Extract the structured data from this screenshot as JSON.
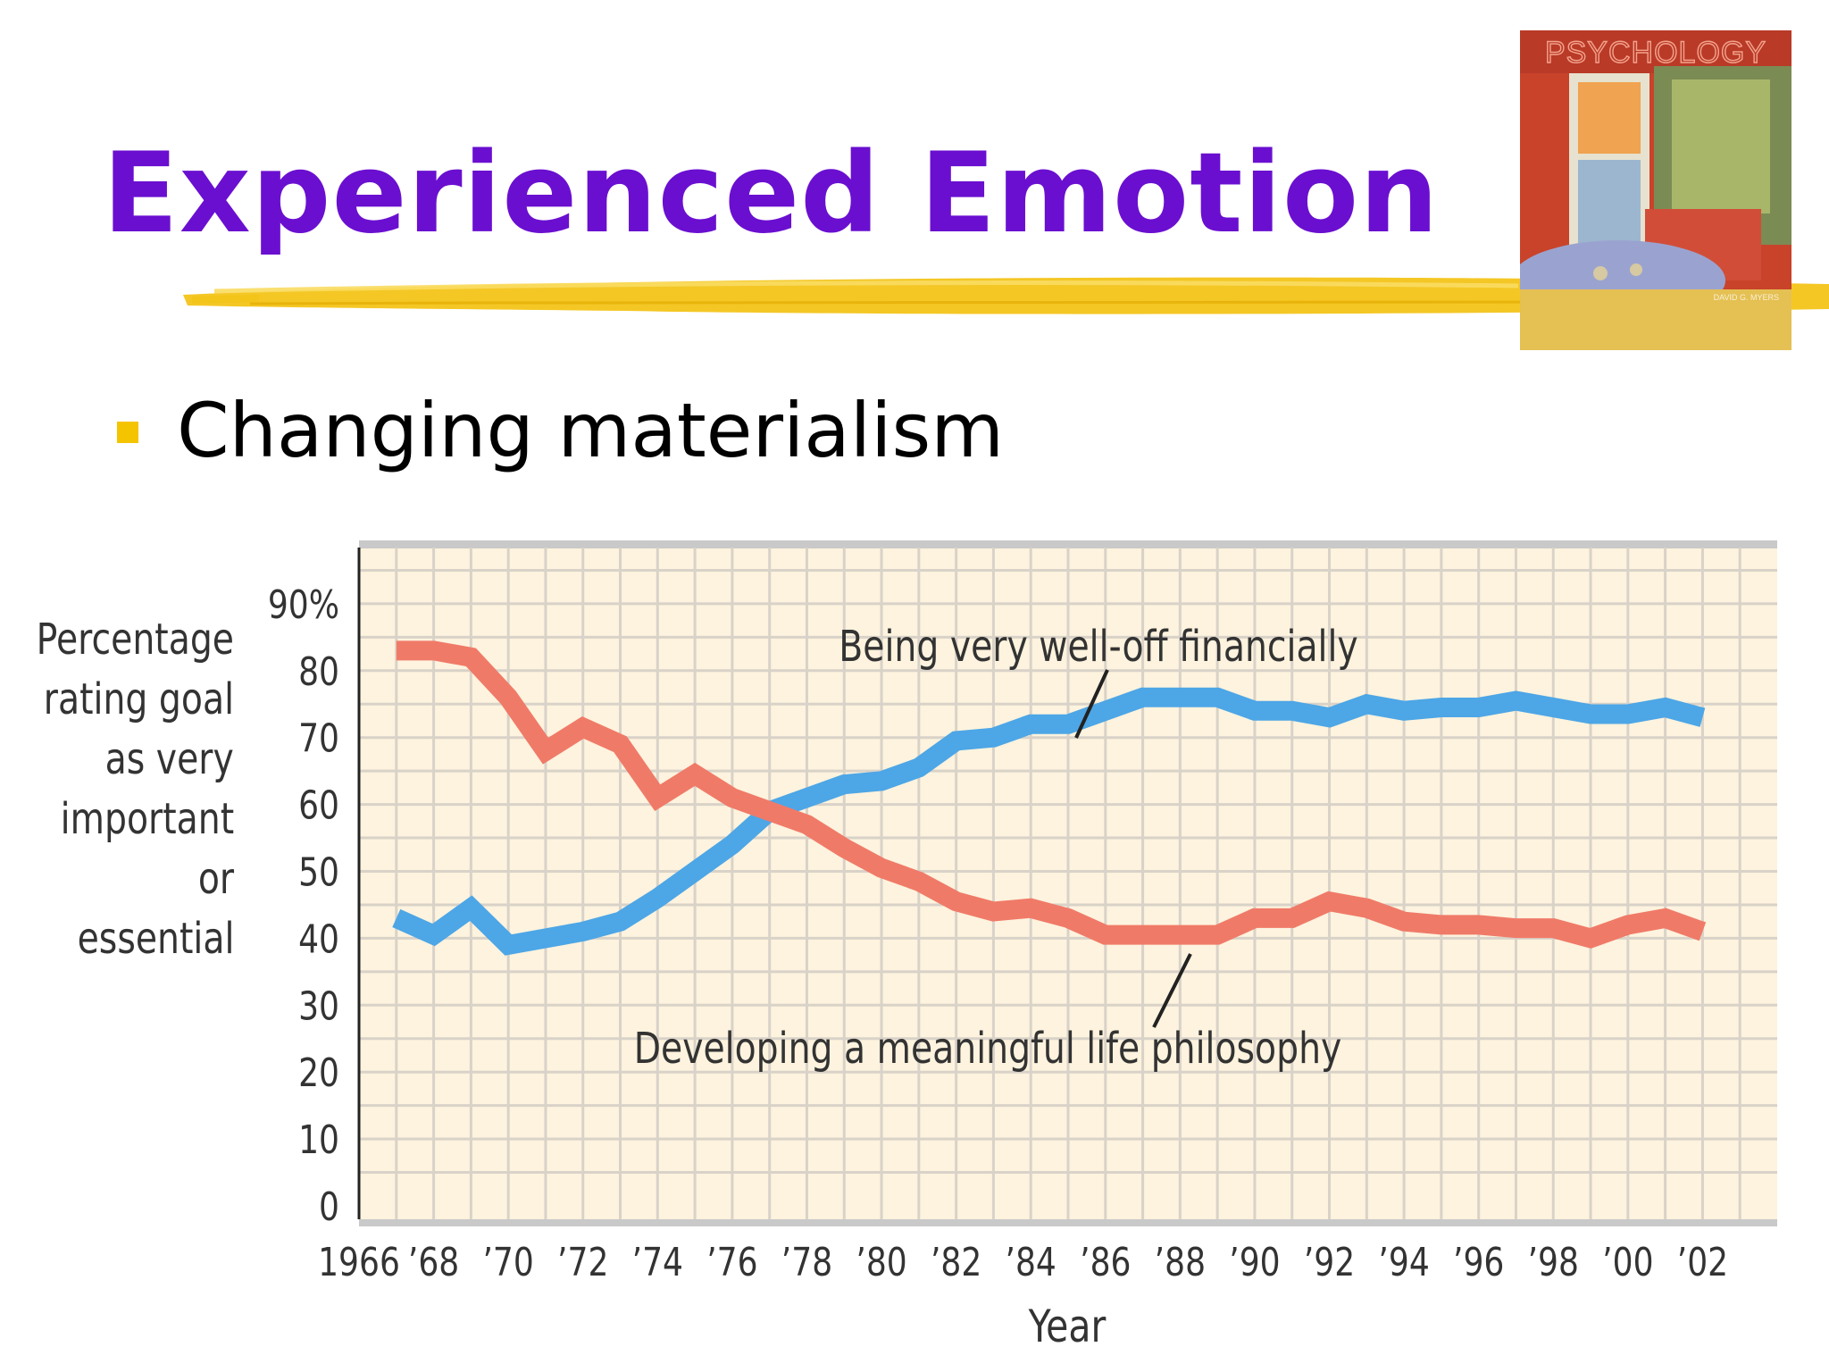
{
  "slide": {
    "title": "Experienced Emotion",
    "bullet": "Changing materialism",
    "book_cover_title": "PSYCHOLOGY",
    "book_cover_author": "DAVID G. MYERS"
  },
  "colors": {
    "title": "#6a0fd0",
    "bullet": "#f5c400",
    "plot_background": "#fdf3de",
    "grid": "#d9d2c8",
    "series_financial": "#4da6e6",
    "series_philosophy": "#f07a68"
  },
  "chart_data": {
    "type": "line",
    "title": "",
    "xlabel": "Year",
    "ylabel_lines": [
      "Percentage",
      "rating goal",
      "as very",
      "important",
      "or",
      "essential"
    ],
    "xlim": [
      1966,
      2004
    ],
    "ylim": [
      0,
      90
    ],
    "grid": true,
    "x_ticks": [
      {
        "value": 1966,
        "label": "1966"
      },
      {
        "value": 1968,
        "label": "’68"
      },
      {
        "value": 1970,
        "label": "’70"
      },
      {
        "value": 1972,
        "label": "’72"
      },
      {
        "value": 1974,
        "label": "’74"
      },
      {
        "value": 1976,
        "label": "’76"
      },
      {
        "value": 1978,
        "label": "’78"
      },
      {
        "value": 1980,
        "label": "’80"
      },
      {
        "value": 1982,
        "label": "’82"
      },
      {
        "value": 1984,
        "label": "’84"
      },
      {
        "value": 1986,
        "label": "’86"
      },
      {
        "value": 1988,
        "label": "’88"
      },
      {
        "value": 1990,
        "label": "’90"
      },
      {
        "value": 1992,
        "label": "’92"
      },
      {
        "value": 1994,
        "label": "’94"
      },
      {
        "value": 1996,
        "label": "’96"
      },
      {
        "value": 1998,
        "label": "’98"
      },
      {
        "value": 2000,
        "label": "’00"
      },
      {
        "value": 2002,
        "label": "’02"
      }
    ],
    "y_ticks": [
      {
        "value": 0,
        "label": "0"
      },
      {
        "value": 10,
        "label": "10"
      },
      {
        "value": 20,
        "label": "20"
      },
      {
        "value": 30,
        "label": "30"
      },
      {
        "value": 40,
        "label": "40"
      },
      {
        "value": 50,
        "label": "50"
      },
      {
        "value": 60,
        "label": "60"
      },
      {
        "value": 70,
        "label": "70"
      },
      {
        "value": 80,
        "label": "80"
      },
      {
        "value": 90,
        "label": "90%"
      }
    ],
    "x": [
      1967,
      1968,
      1969,
      1970,
      1971,
      1972,
      1973,
      1974,
      1975,
      1976,
      1977,
      1978,
      1979,
      1980,
      1981,
      1982,
      1983,
      1984,
      1985,
      1986,
      1987,
      1988,
      1989,
      1990,
      1991,
      1992,
      1993,
      1994,
      1995,
      1996,
      1997,
      1998,
      1999,
      2000,
      2001,
      2002
    ],
    "series": [
      {
        "name": "Being very well-off financially",
        "values": [
          43,
          40.5,
          44.5,
          39,
          40,
          41,
          42.5,
          46,
          50,
          54,
          59,
          61,
          63,
          63.5,
          65.5,
          69.5,
          70,
          72,
          72,
          74,
          76,
          76,
          76,
          74,
          74,
          73,
          75,
          74,
          74.5,
          74.5,
          75.5,
          74.5,
          73.5,
          73.5,
          74.5,
          73
        ]
      },
      {
        "name": "Developing a meaningful life philosophy",
        "values": [
          83,
          83,
          82,
          76,
          68,
          71.5,
          69,
          61,
          64.5,
          61,
          59,
          57,
          53.5,
          50.5,
          48.5,
          45.5,
          44,
          44.5,
          43,
          40.5,
          40.5,
          40.5,
          40.5,
          43,
          43,
          45.5,
          44.5,
          42.5,
          42,
          42,
          41.5,
          41.5,
          40,
          42,
          43,
          41
        ]
      }
    ],
    "annotations": [
      {
        "text": "Being very well-off financially",
        "points_to_x": 1984.6,
        "points_to_y": 72
      },
      {
        "text": "Developing a meaningful life philosophy",
        "points_to_x": 1988.5,
        "points_to_y": 41
      }
    ]
  }
}
